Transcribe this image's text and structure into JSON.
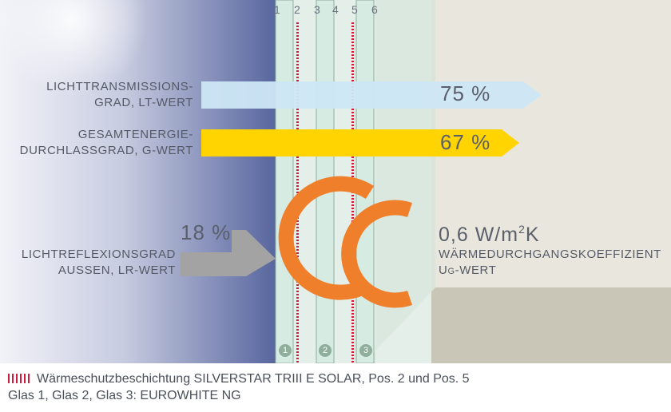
{
  "pane_numbers": [
    "1",
    "2",
    "3",
    "4",
    "5",
    "6"
  ],
  "glass_numbers": [
    "1",
    "2",
    "3"
  ],
  "light_transmission": {
    "label_line1": "LICHTTRANSMISSIONS-",
    "label_line2": "GRAD, LT-WERT",
    "value": "75 %",
    "color": "#cde7f5"
  },
  "total_energy": {
    "label_line1": "GESAMTENERGIE-",
    "label_line2": "DURCHLASSGRAD, G-WERT",
    "value": "67 %",
    "color": "#ffd400"
  },
  "light_reflection": {
    "label_line1": "LICHTREFLEXIONSGRAD",
    "label_line2": "AUSSEN, LR-WERT",
    "value": "18 %",
    "color": "#a3a3a3"
  },
  "u_value": {
    "value_main": "0,6 W/m",
    "value_sup": "2",
    "value_unit": "K",
    "label_line1": "WÄRMEDURCHGANGSKOEFFIZIENT",
    "label_prefix": "U",
    "label_sub": "G",
    "label_rest": "-WERT",
    "color": "#f07f2c"
  },
  "captions": {
    "coating": "Wärmeschutzbeschichtung SILVERSTAR TRIII E SOLAR, Pos. 2 und Pos. 5",
    "glass": "Glas 1, Glas 2, Glas 3: EUROWHITE NG"
  },
  "colors": {
    "coating_marker": "#d01b3c",
    "glass_pane": "#d9ece3",
    "glass_border": "#8fae9c",
    "room_wall": "#e9e7dd",
    "room_floor": "#c9c6b8",
    "sky_dark": "#5a6aa0"
  }
}
